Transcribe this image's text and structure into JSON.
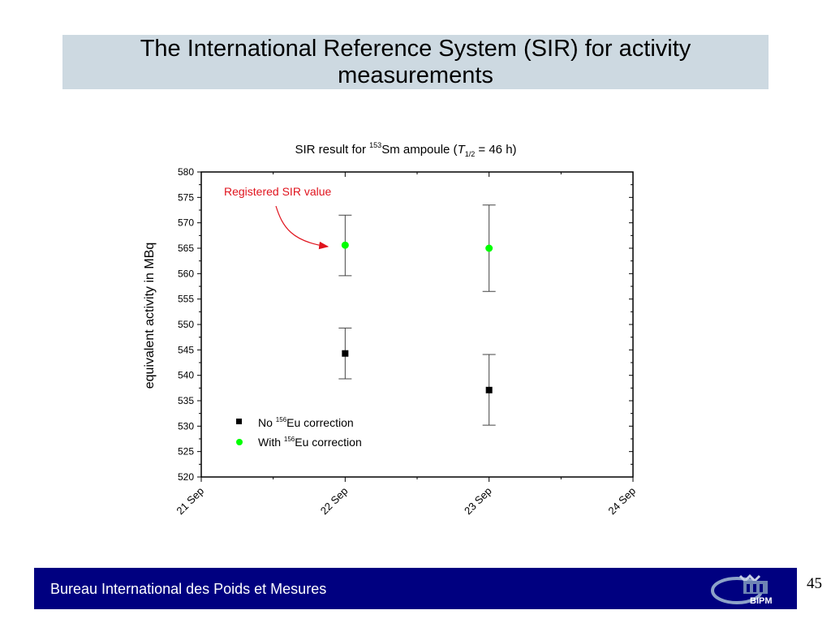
{
  "slide": {
    "title": "The International Reference System (SIR) for activity measurements",
    "footer_text": "Bureau International des Poids et Mesures",
    "logo_text": "BIPM",
    "page_number": "45"
  },
  "colors": {
    "title_band": "#cdd9e1",
    "footer": "#000080",
    "no_correction": "#000000",
    "with_correction": "#00ff00",
    "annotation": "#e0141e"
  },
  "chart_data": {
    "type": "scatter",
    "title_parts": {
      "pre": "SIR result for ",
      "isotope_mass": "153",
      "isotope": "Sm ampoule (",
      "halflife_symbol": "T",
      "halflife_sub": "1/2",
      "halflife_value": " = 46 h)"
    },
    "ylabel": "equivalent activity in MBq",
    "xlabel": "",
    "ylim": [
      520,
      580
    ],
    "yticks": [
      520,
      525,
      530,
      535,
      540,
      545,
      550,
      555,
      560,
      565,
      570,
      575,
      580
    ],
    "xlim": [
      0,
      3
    ],
    "xticks": [
      {
        "x": 0,
        "label": "21 Sep"
      },
      {
        "x": 1,
        "label": "22 Sep"
      },
      {
        "x": 2,
        "label": "23 Sep"
      },
      {
        "x": 3,
        "label": "24 Sep"
      }
    ],
    "series": [
      {
        "name_pre": "No ",
        "name_mass": "156",
        "name_post": "Eu correction",
        "marker": "square",
        "color": "#000000",
        "points": [
          {
            "x": 1,
            "y": 544.3,
            "err_low": 539.3,
            "err_high": 549.3
          },
          {
            "x": 2,
            "y": 537.1,
            "err_low": 530.2,
            "err_high": 544.1
          }
        ]
      },
      {
        "name_pre": "With ",
        "name_mass": "156",
        "name_post": "Eu correction",
        "marker": "circle",
        "color": "#00ff00",
        "points": [
          {
            "x": 1,
            "y": 565.6,
            "err_low": 559.6,
            "err_high": 571.5
          },
          {
            "x": 2,
            "y": 565.0,
            "err_low": 556.5,
            "err_high": 573.5
          }
        ]
      }
    ],
    "annotation": {
      "text": "Registered SIR value",
      "points_to": {
        "x": 1,
        "y": 565.6
      }
    },
    "legend_position": "bottom-left",
    "grid": false
  }
}
